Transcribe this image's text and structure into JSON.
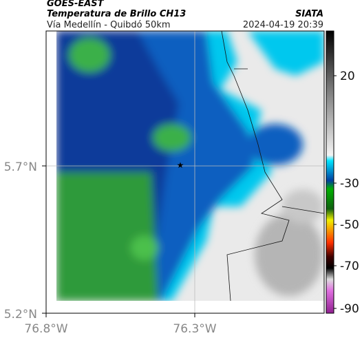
{
  "header": {
    "satellite": "GOES-EAST",
    "product": "Temperatura de Brillo CH13",
    "org": "SIATA",
    "route": "Vía Medellín - Quibdó 50km",
    "timestamp": "2024-04-19 20:39"
  },
  "axes": {
    "lat_labels": [
      "5.7°N",
      "5.2°N"
    ],
    "lon_labels": [
      "76.8°W",
      "76.3°W"
    ]
  },
  "colorbar": {
    "labels": [
      "20",
      "-30",
      "-50",
      "-70",
      "-90"
    ]
  }
}
